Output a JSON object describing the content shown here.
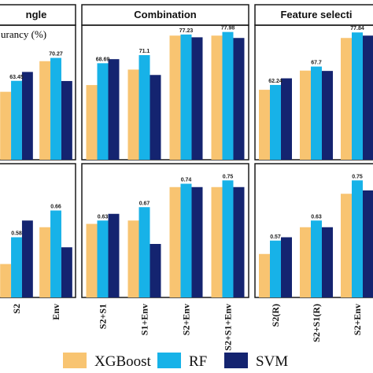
{
  "chart_data": {
    "type": "bar",
    "ylabel": "urancy (%)",
    "colors": {
      "XGBoost": "#F8C471",
      "RF": "#17B2E8",
      "SVM": "#142470"
    },
    "legend": {
      "position": "bottom",
      "series": [
        "XGBoost",
        "RF",
        "SVM"
      ]
    },
    "groups": [
      {
        "title": "ngle",
        "categories": [
          "S2",
          "Env"
        ],
        "accuracy": {
          "XGBoost": [
            60.2,
            69.3
          ],
          "RF": [
            63.45,
            70.27
          ],
          "SVM": [
            66.1,
            63.4
          ]
        },
        "accuracy_labels": [
          "63.45",
          "70.27"
        ],
        "kappa": {
          "XGBoost": [
            0.5,
            0.61
          ],
          "RF": [
            0.58,
            0.66
          ],
          "SVM": [
            0.63,
            0.55
          ]
        },
        "kappa_labels": [
          "0.58",
          "0.66"
        ]
      },
      {
        "title": "Combination",
        "categories": [
          "S2+S1",
          "S1+Env",
          "S2+Env",
          "S2+S1+Env"
        ],
        "accuracy": {
          "XGBoost": [
            62.2,
            66.8,
            76.9,
            76.9
          ],
          "RF": [
            68.69,
            71.1,
            77.23,
            77.98
          ],
          "SVM": [
            69.9,
            65.2,
            76.4,
            76.2
          ]
        },
        "accuracy_labels": [
          "68.69",
          "71.1",
          "77.23",
          "77.98"
        ],
        "kappa": {
          "XGBoost": [
            0.62,
            0.63,
            0.73,
            0.73
          ],
          "RF": [
            0.63,
            0.67,
            0.74,
            0.75
          ],
          "SVM": [
            0.65,
            0.56,
            0.73,
            0.73
          ]
        },
        "kappa_labels": [
          "0.63",
          "0.67",
          "0.74",
          "0.75"
        ]
      },
      {
        "title": "Feature selecti",
        "categories": [
          "S2(R)",
          "S2+S1(R)",
          "S2+Env"
        ],
        "accuracy": {
          "XGBoost": [
            60.8,
            66.5,
            76.2
          ],
          "RF": [
            62.24,
            67.7,
            77.84
          ],
          "SVM": [
            64.2,
            66.4,
            76.9
          ]
        },
        "accuracy_labels": [
          "62.24",
          "67.7",
          "77.84"
        ],
        "kappa": {
          "XGBoost": [
            0.53,
            0.61,
            0.71
          ],
          "RF": [
            0.57,
            0.63,
            0.75
          ],
          "SVM": [
            0.58,
            0.61,
            0.72
          ]
        },
        "kappa_labels": [
          "0.57",
          "0.63",
          "0.75"
        ]
      }
    ]
  }
}
